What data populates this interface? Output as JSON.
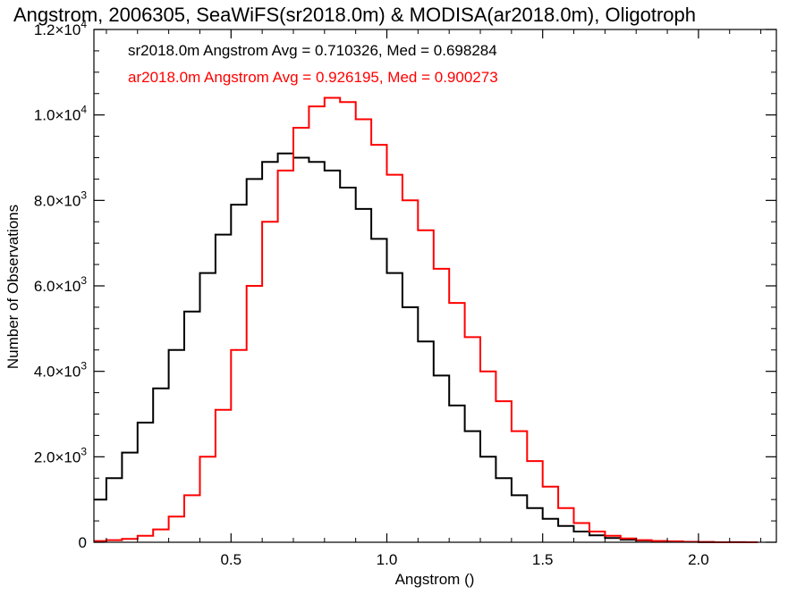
{
  "chart_data": {
    "type": "line",
    "title": "Angstrom, 2006305, SeaWiFS(sr2018.0m) & MODISA(ar2018.0m), Oligotroph",
    "xlabel": "Angstrom ()",
    "ylabel": "Number of Observations",
    "xlim": [
      0.06,
      2.25
    ],
    "ylim": [
      0,
      12000
    ],
    "x_ticks": [
      0.5,
      1.0,
      1.5,
      2.0
    ],
    "x_tick_labels": [
      "0.5",
      "1.0",
      "1.5",
      "2.0"
    ],
    "y_ticks": [
      0,
      2000,
      4000,
      6000,
      8000,
      10000,
      12000
    ],
    "y_tick_labels": [
      {
        "mant": "0",
        "exp": ""
      },
      {
        "mant": "2.0×10",
        "exp": "3"
      },
      {
        "mant": "4.0×10",
        "exp": "3"
      },
      {
        "mant": "6.0×10",
        "exp": "3"
      },
      {
        "mant": "8.0×10",
        "exp": "3"
      },
      {
        "mant": "1.0×10",
        "exp": "4"
      },
      {
        "mant": "1.2×10",
        "exp": "4"
      }
    ],
    "grid": false,
    "legend": [
      {
        "text": "sr2018.0m Angstrom Avg = 0.710326, Med = 0.698284",
        "color": "#000000"
      },
      {
        "text": "ar2018.0m Angstrom Avg = 0.926195, Med = 0.900273",
        "color": "#ff0000"
      }
    ],
    "series": [
      {
        "color": "#000000",
        "x": [
          0.06,
          0.1,
          0.15,
          0.2,
          0.25,
          0.3,
          0.35,
          0.4,
          0.45,
          0.5,
          0.55,
          0.6,
          0.65,
          0.7,
          0.75,
          0.8,
          0.85,
          0.9,
          0.95,
          1.0,
          1.05,
          1.1,
          1.15,
          1.2,
          1.25,
          1.3,
          1.35,
          1.4,
          1.45,
          1.5,
          1.55,
          1.6,
          1.65,
          1.7,
          1.75,
          1.8,
          1.85,
          1.9,
          1.95,
          2.0,
          2.05,
          2.1,
          2.15
        ],
        "values": [
          1000,
          1500,
          2100,
          2800,
          3600,
          4500,
          5400,
          6300,
          7200,
          7900,
          8500,
          8900,
          9100,
          9000,
          8900,
          8700,
          8300,
          7800,
          7100,
          6300,
          5500,
          4700,
          3900,
          3200,
          2600,
          2000,
          1500,
          1100,
          800,
          550,
          380,
          250,
          160,
          100,
          60,
          40,
          25,
          15,
          10,
          5,
          0,
          3,
          0
        ]
      },
      {
        "color": "#ff0000",
        "x": [
          0.06,
          0.1,
          0.15,
          0.2,
          0.25,
          0.3,
          0.35,
          0.4,
          0.45,
          0.5,
          0.55,
          0.6,
          0.65,
          0.7,
          0.75,
          0.8,
          0.85,
          0.9,
          0.95,
          1.0,
          1.05,
          1.1,
          1.15,
          1.2,
          1.25,
          1.3,
          1.35,
          1.4,
          1.45,
          1.5,
          1.55,
          1.6,
          1.65,
          1.7,
          1.75,
          1.8,
          1.85,
          1.9,
          1.95,
          2.0,
          2.05,
          2.1,
          2.15
        ],
        "values": [
          30,
          50,
          80,
          150,
          300,
          600,
          1100,
          2000,
          3100,
          4500,
          6000,
          7500,
          8700,
          9700,
          10200,
          10400,
          10300,
          9900,
          9300,
          8600,
          8000,
          7300,
          6400,
          5600,
          4800,
          4000,
          3300,
          2600,
          1900,
          1300,
          800,
          450,
          250,
          150,
          90,
          50,
          30,
          20,
          10,
          5,
          0,
          0,
          0
        ]
      }
    ]
  }
}
